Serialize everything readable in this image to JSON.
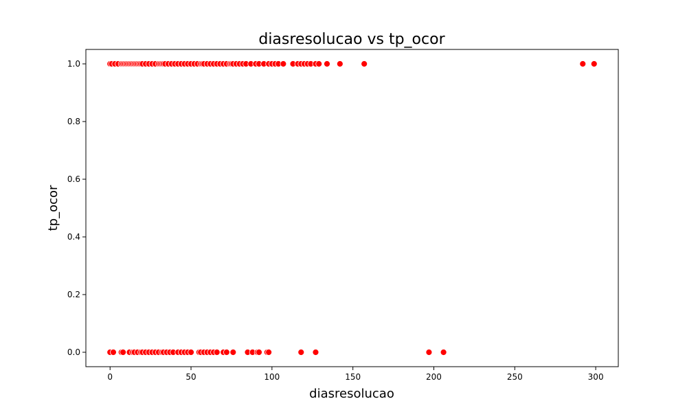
{
  "chart_data": {
    "type": "scatter",
    "title": "diasresolucao vs tp_ocor",
    "xlabel": "diasresolucao",
    "ylabel": "tp_ocor",
    "xlim": [
      -14.95,
      313.95
    ],
    "ylim": [
      -0.05,
      1.05
    ],
    "xticks": [
      0,
      50,
      100,
      150,
      200,
      250,
      300
    ],
    "yticks": [
      0.0,
      0.2,
      0.4,
      0.6,
      0.8,
      1.0
    ],
    "xtick_labels": [
      "0",
      "50",
      "100",
      "150",
      "200",
      "250",
      "300"
    ],
    "ytick_labels": [
      "0.0",
      "0.2",
      "0.4",
      "0.6",
      "0.8",
      "1.0"
    ],
    "grid": false,
    "legend": "none",
    "marker_color": "#ff0000",
    "marker_edge_color": "#ffffff",
    "series": [
      {
        "points": [
          [
            0,
            1
          ],
          [
            1,
            1
          ],
          [
            3,
            1
          ],
          [
            5,
            1
          ],
          [
            7,
            1
          ],
          [
            8,
            1
          ],
          [
            9,
            1
          ],
          [
            10,
            1
          ],
          [
            11,
            1
          ],
          [
            12,
            1
          ],
          [
            13,
            1
          ],
          [
            14,
            1
          ],
          [
            15,
            1
          ],
          [
            16,
            1
          ],
          [
            17,
            1
          ],
          [
            18,
            1
          ],
          [
            19,
            1
          ],
          [
            20,
            1
          ],
          [
            22,
            1
          ],
          [
            24,
            1
          ],
          [
            26,
            1
          ],
          [
            28,
            1
          ],
          [
            30,
            1
          ],
          [
            31,
            1
          ],
          [
            32,
            1
          ],
          [
            33,
            1
          ],
          [
            34,
            1
          ],
          [
            36,
            1
          ],
          [
            38,
            1
          ],
          [
            40,
            1
          ],
          [
            42,
            1
          ],
          [
            44,
            1
          ],
          [
            46,
            1
          ],
          [
            48,
            1
          ],
          [
            50,
            1
          ],
          [
            52,
            1
          ],
          [
            54,
            1
          ],
          [
            56,
            1
          ],
          [
            57,
            1
          ],
          [
            58,
            1
          ],
          [
            60,
            1
          ],
          [
            62,
            1
          ],
          [
            64,
            1
          ],
          [
            66,
            1
          ],
          [
            68,
            1
          ],
          [
            70,
            1
          ],
          [
            72,
            1
          ],
          [
            74,
            1
          ],
          [
            75,
            1
          ],
          [
            76,
            1
          ],
          [
            78,
            1
          ],
          [
            80,
            1
          ],
          [
            82,
            1
          ],
          [
            84,
            1
          ],
          [
            87,
            1
          ],
          [
            90,
            1
          ],
          [
            92,
            1
          ],
          [
            95,
            1
          ],
          [
            98,
            1
          ],
          [
            100,
            1
          ],
          [
            102,
            1
          ],
          [
            104,
            1
          ],
          [
            107,
            1
          ],
          [
            113,
            1
          ],
          [
            116,
            1
          ],
          [
            118,
            1
          ],
          [
            120,
            1
          ],
          [
            122,
            1
          ],
          [
            124,
            1
          ],
          [
            127,
            1
          ],
          [
            129,
            1
          ],
          [
            134,
            1
          ],
          [
            142,
            1
          ],
          [
            157,
            1
          ],
          [
            292,
            1
          ],
          [
            299,
            1
          ],
          [
            0,
            0
          ],
          [
            2,
            0
          ],
          [
            7,
            0
          ],
          [
            8,
            0
          ],
          [
            12,
            0
          ],
          [
            14,
            0
          ],
          [
            15,
            0
          ],
          [
            17,
            0
          ],
          [
            19,
            0
          ],
          [
            20,
            0
          ],
          [
            22,
            0
          ],
          [
            24,
            0
          ],
          [
            26,
            0
          ],
          [
            28,
            0
          ],
          [
            30,
            0
          ],
          [
            32,
            0
          ],
          [
            33,
            0
          ],
          [
            35,
            0
          ],
          [
            37,
            0
          ],
          [
            39,
            0
          ],
          [
            42,
            0
          ],
          [
            44,
            0
          ],
          [
            46,
            0
          ],
          [
            48,
            0
          ],
          [
            50,
            0
          ],
          [
            55,
            0
          ],
          [
            56,
            0
          ],
          [
            58,
            0
          ],
          [
            60,
            0
          ],
          [
            62,
            0
          ],
          [
            64,
            0
          ],
          [
            66,
            0
          ],
          [
            70,
            0
          ],
          [
            72,
            0
          ],
          [
            76,
            0
          ],
          [
            85,
            0
          ],
          [
            88,
            0
          ],
          [
            91,
            0
          ],
          [
            92,
            0
          ],
          [
            97,
            0
          ],
          [
            98,
            0
          ],
          [
            118,
            0
          ],
          [
            127,
            0
          ],
          [
            197,
            0
          ],
          [
            206,
            0
          ]
        ]
      }
    ]
  }
}
